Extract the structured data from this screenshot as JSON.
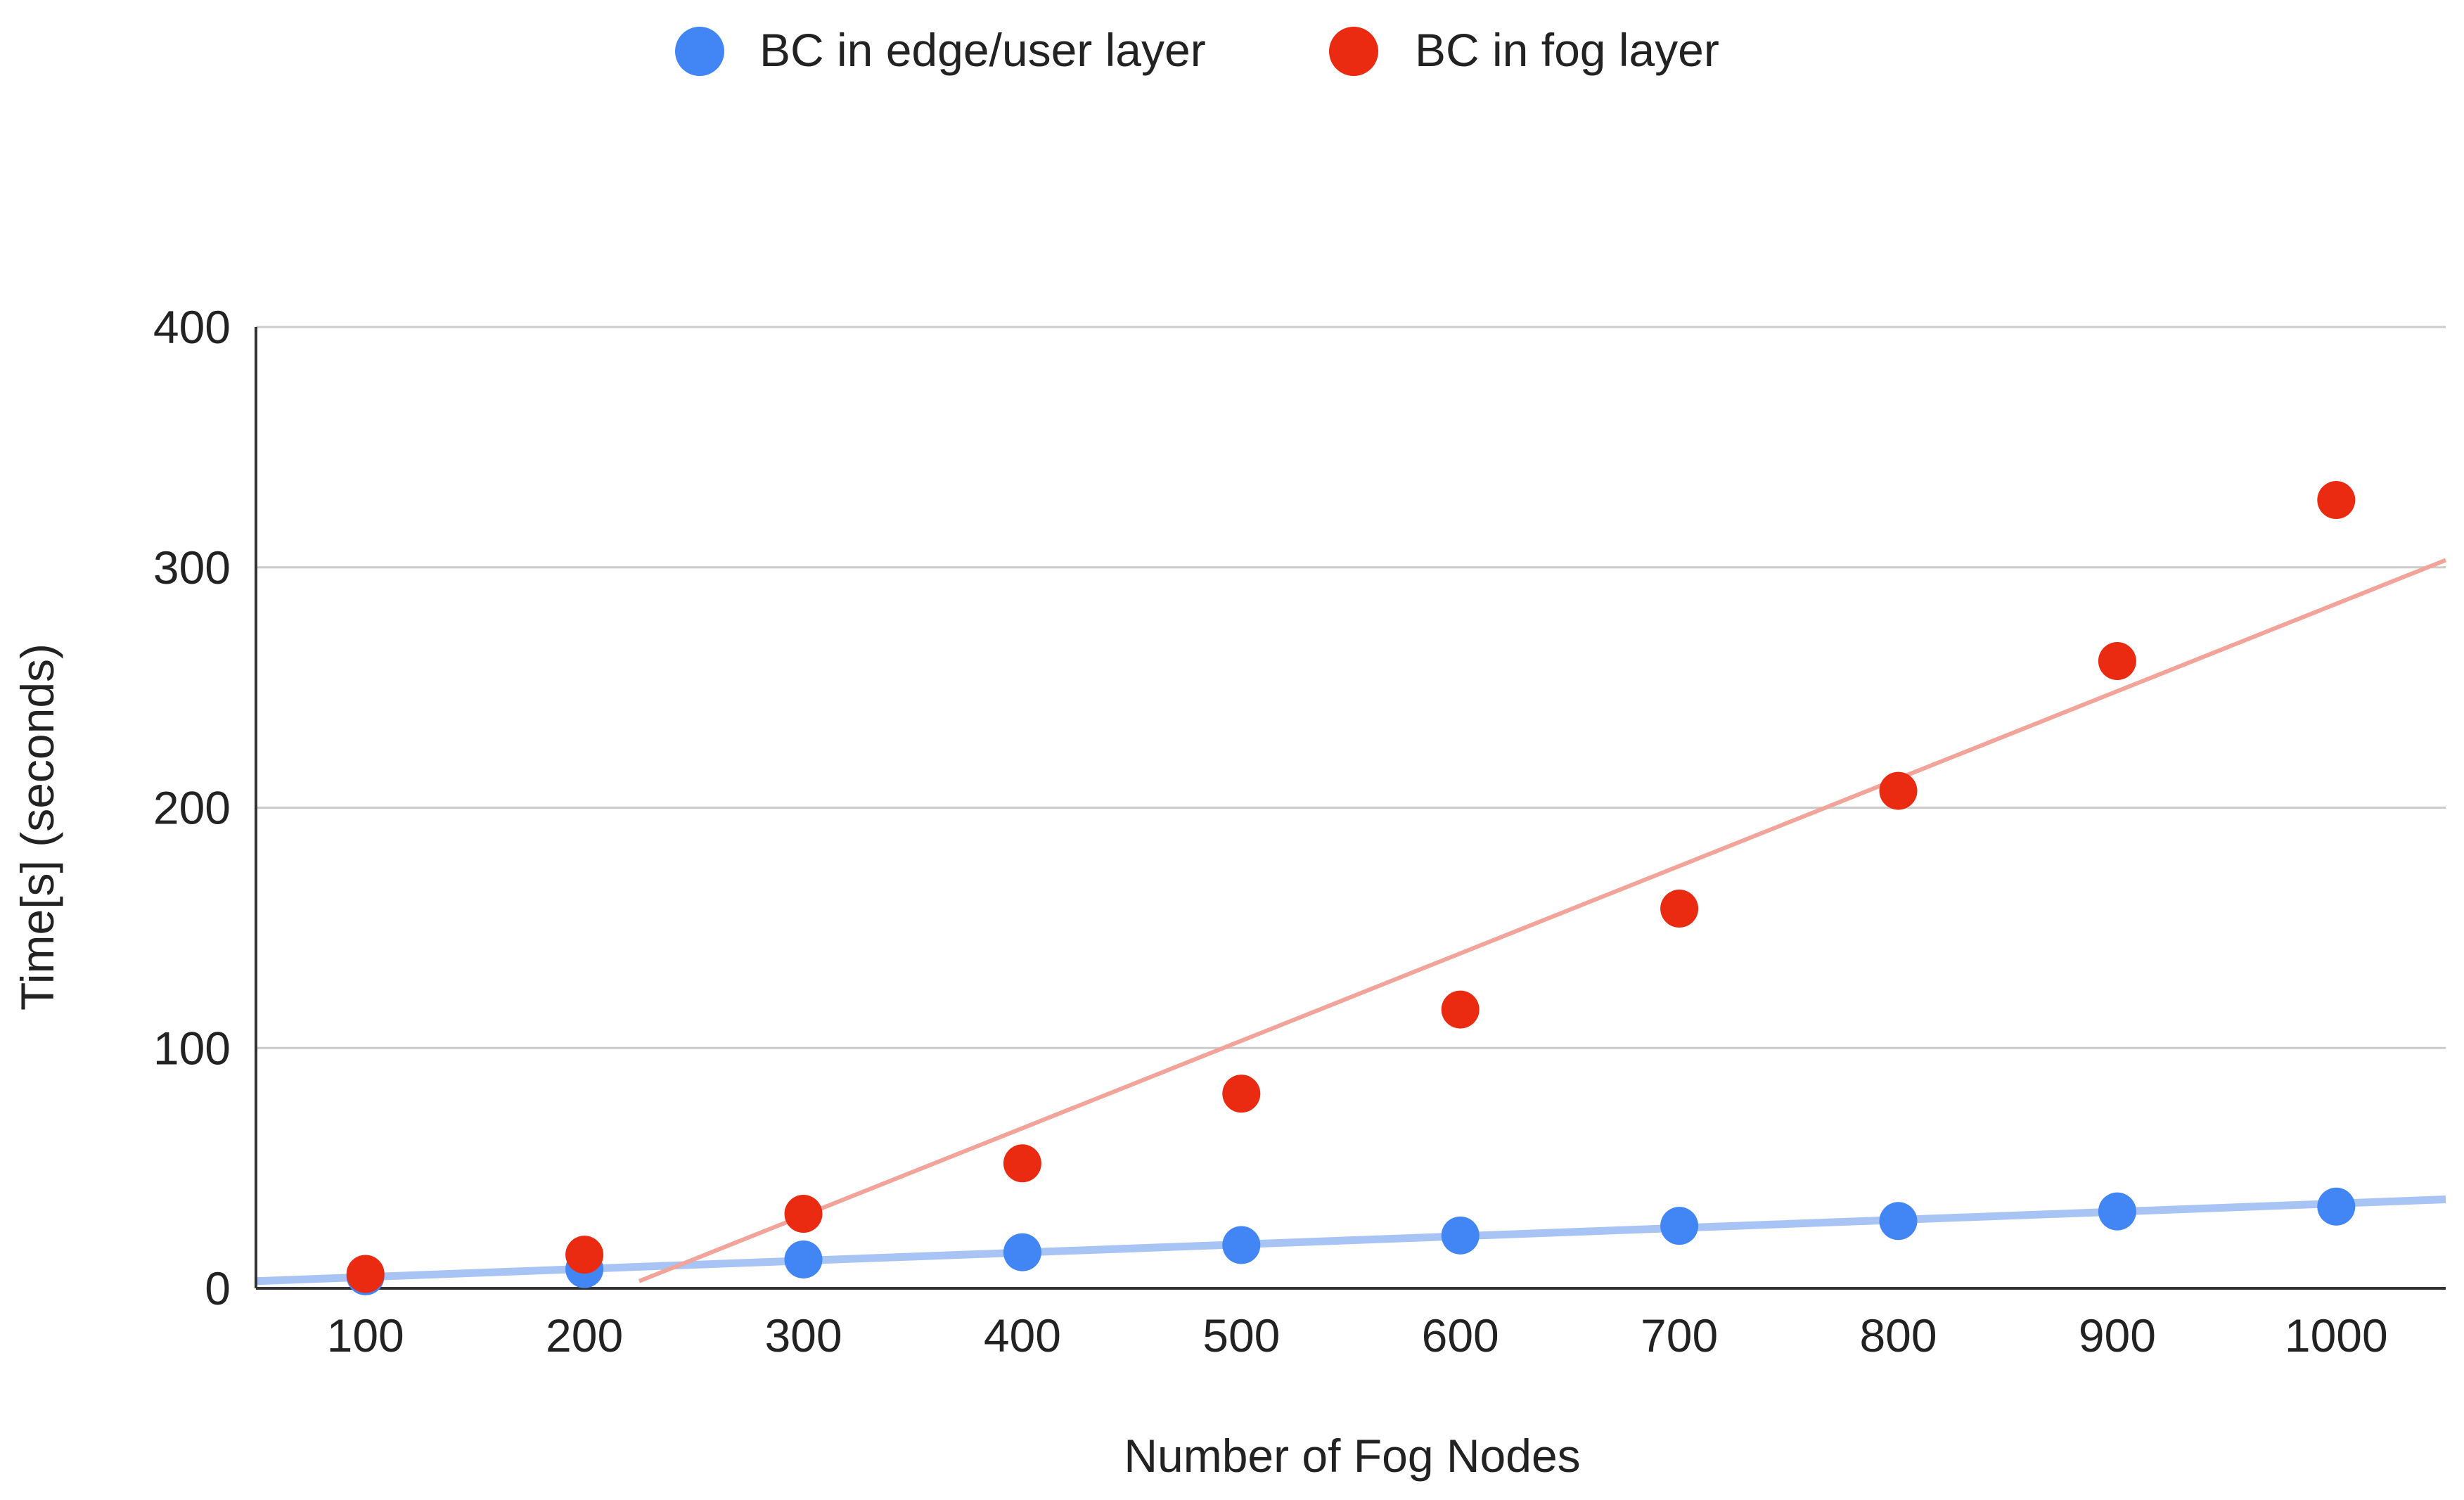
{
  "chart_data": {
    "type": "scatter",
    "title": "",
    "xlabel": "Number of Fog Nodes",
    "ylabel": "Time[s] (seconds)",
    "x": [
      100,
      200,
      300,
      400,
      500,
      600,
      700,
      800,
      900,
      1000
    ],
    "xlim": [
      50,
      1050
    ],
    "ylim": [
      0,
      400
    ],
    "yticks": [
      0,
      100,
      200,
      300,
      400
    ],
    "grid": true,
    "legend_position": "top",
    "series": [
      {
        "name": "BC in edge/user layer",
        "color": "#4285f4",
        "trendline_color": "#a8c4f4",
        "values": [
          5,
          8,
          12,
          15,
          18,
          22,
          26,
          28,
          32,
          34
        ],
        "trendline": [
          [
            50,
            3
          ],
          [
            1050,
            37
          ]
        ]
      },
      {
        "name": "BC in fog layer",
        "color": "#ea2b12",
        "trendline_color": "#f2a39a",
        "values": [
          6,
          14,
          31,
          52,
          81,
          116,
          158,
          207,
          261,
          328
        ],
        "trendline": [
          [
            225,
            3
          ],
          [
            1050,
            303
          ]
        ]
      }
    ]
  }
}
